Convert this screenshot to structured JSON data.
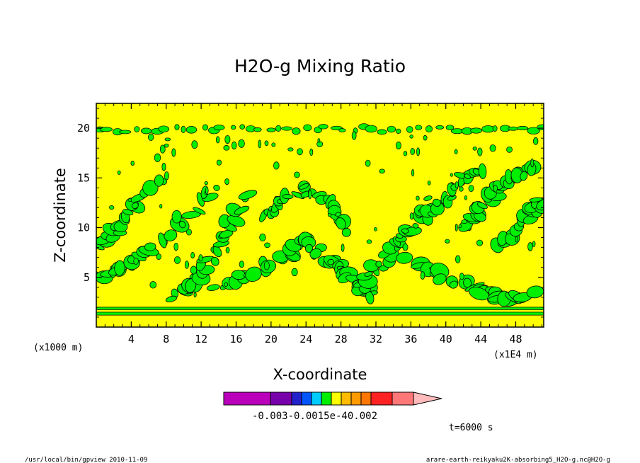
{
  "chart_data": {
    "type": "heatmap",
    "title": "H2O-g Mixing Ratio",
    "xlabel": "X-coordinate",
    "ylabel": "Z-coordinate",
    "x_unit_left": "(x1000 m)",
    "x_unit_right": "(x1E4 m)",
    "xlim": [
      0,
      51.2
    ],
    "ylim": [
      0,
      22.5
    ],
    "x_ticks": [
      "4",
      "8",
      "12",
      "16",
      "20",
      "24",
      "28",
      "32",
      "36",
      "40",
      "44",
      "48"
    ],
    "y_ticks": [
      "5",
      "10",
      "15",
      "20"
    ],
    "x_tick_values": [
      4,
      8,
      12,
      16,
      20,
      24,
      28,
      32,
      36,
      40,
      44,
      48
    ],
    "y_tick_values": [
      5,
      10,
      15,
      20
    ],
    "background_color": "#ffff00",
    "anomaly_color": "#00ee00",
    "bands": [
      {
        "z_from": 1.2,
        "z_to": 1.5
      },
      {
        "z_from": 1.75,
        "z_to": 2.0
      }
    ],
    "plumes": [
      {
        "x": [
          0.5,
          3,
          6,
          10,
          14
        ],
        "z": [
          5,
          6,
          7.5,
          11,
          14.5
        ],
        "width": 1.6
      },
      {
        "x": [
          0.5,
          2.5,
          5,
          8
        ],
        "z": [
          8,
          10,
          12.5,
          15.5
        ],
        "width": 1.2
      },
      {
        "x": [
          9,
          11,
          13,
          15,
          17
        ],
        "z": [
          3,
          4.5,
          7,
          10,
          13.5
        ],
        "width": 1.4
      },
      {
        "x": [
          14,
          18,
          22,
          24
        ],
        "z": [
          4,
          5.5,
          7,
          9
        ],
        "width": 1.3
      },
      {
        "x": [
          24,
          26,
          28,
          30,
          32
        ],
        "z": [
          9,
          7,
          5.5,
          4,
          3
        ],
        "width": 1.5
      },
      {
        "x": [
          19,
          21,
          24,
          27,
          29
        ],
        "z": [
          11,
          12.5,
          14,
          12,
          9.5
        ],
        "width": 1.0
      },
      {
        "x": [
          30,
          32,
          34,
          36,
          38
        ],
        "z": [
          4,
          6,
          8,
          10,
          13
        ],
        "width": 1.4
      },
      {
        "x": [
          36,
          40,
          44,
          47,
          50
        ],
        "z": [
          7,
          5,
          3.5,
          3,
          3.5
        ],
        "width": 1.6
      },
      {
        "x": [
          42,
          44,
          46,
          48,
          50.5
        ],
        "z": [
          10,
          12,
          14,
          15,
          16
        ],
        "width": 1.3
      },
      {
        "x": [
          46,
          48,
          50,
          51
        ],
        "z": [
          8,
          10,
          12,
          13
        ],
        "width": 1.2
      },
      {
        "x": [
          38,
          40,
          42,
          44
        ],
        "z": [
          11,
          13,
          15,
          15.5
        ],
        "width": 1.0
      }
    ],
    "top_band_z": 19.9,
    "colorbar": {
      "colors": [
        "#bb00bb",
        "#7700aa",
        "#2222cc",
        "#0055ff",
        "#00ccff",
        "#00ee00",
        "#ffff00",
        "#ffbb00",
        "#ff9900",
        "#ff7700",
        "#ff2222",
        "#ff7777",
        "#ffbbbb"
      ],
      "labels": "-0.003-0.0015e-40.002"
    },
    "time_label": "t=6000 s"
  },
  "footer": {
    "left": "/usr/local/bin/gpview  2010-11-09",
    "right": "arare-earth-reikyaku2K-absorbing5_H2O-g.nc@H2O-g"
  }
}
